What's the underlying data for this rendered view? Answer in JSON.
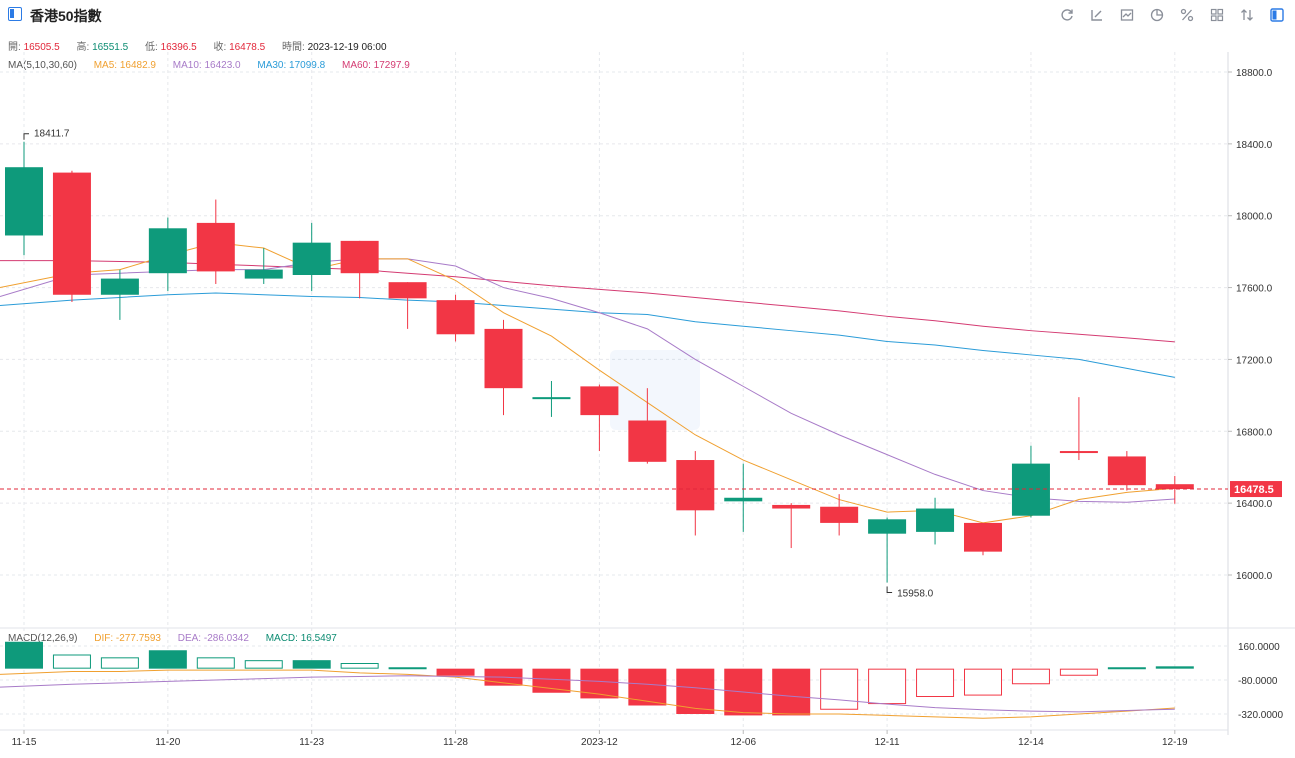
{
  "header": {
    "title": "香港50指數",
    "tools": [
      "refresh-icon",
      "draw-icon",
      "chart-type-icon",
      "pie-icon",
      "percent-icon",
      "grid-icon",
      "compare-icon",
      "sidebar-icon"
    ]
  },
  "ohlc": {
    "open_label": "開:",
    "open": "16505.5",
    "high_label": "高:",
    "high": "16551.5",
    "low_label": "低:",
    "low": "16396.5",
    "close_label": "收:",
    "close": "16478.5",
    "time_label": "時間:",
    "time": "2023-12-19 06:00"
  },
  "ma_legend": {
    "label": "MA(5,10,30,60)",
    "items": [
      {
        "text": "MA5: 16482.9",
        "color": "#f0a030"
      },
      {
        "text": "MA10: 16423.0",
        "color": "#a87bc8"
      },
      {
        "text": "MA30: 17099.8",
        "color": "#2b9cd8"
      },
      {
        "text": "MA60: 17297.9",
        "color": "#d43b72"
      }
    ]
  },
  "macd_legend": {
    "label": "MACD(12,26,9)",
    "items": [
      {
        "text": "DIF: -277.7593",
        "color": "#f0a030"
      },
      {
        "text": "DEA: -286.0342",
        "color": "#a87bc8"
      },
      {
        "text": "MACD: 16.5497",
        "color": "#0c8c72"
      }
    ]
  },
  "colors": {
    "up": "#0e9a7b",
    "down": "#f23645",
    "grid": "#e6e8ec"
  },
  "chart_data": [
    {
      "type": "candlestick",
      "price_axis": {
        "min": 15750,
        "max": 18950,
        "ticks": [
          16000,
          16400,
          16800,
          17200,
          17600,
          18000,
          18400,
          18800
        ],
        "tick_labels": [
          "16000.0",
          "16400.0",
          "16800.0",
          "17200.0",
          "17600.0",
          "18000.0",
          "18400.0",
          "18800.0"
        ]
      },
      "x_tick_labels": [
        {
          "index": 0,
          "label": "11-15"
        },
        {
          "index": 3,
          "label": "11-20"
        },
        {
          "index": 6,
          "label": "11-23"
        },
        {
          "index": 9,
          "label": "11-28"
        },
        {
          "index": 12,
          "label": "2023-12"
        },
        {
          "index": 15,
          "label": "12-06"
        },
        {
          "index": 18,
          "label": "12-11"
        },
        {
          "index": 21,
          "label": "12-14"
        },
        {
          "index": 24,
          "label": "12-19"
        }
      ],
      "candles": [
        {
          "o": 17890,
          "h": 18412,
          "l": 17780,
          "c": 18270
        },
        {
          "o": 18240,
          "h": 18250,
          "l": 17520,
          "c": 17560
        },
        {
          "o": 17560,
          "h": 17700,
          "l": 17420,
          "c": 17650
        },
        {
          "o": 17680,
          "h": 17990,
          "l": 17580,
          "c": 17930
        },
        {
          "o": 17960,
          "h": 18090,
          "l": 17620,
          "c": 17690
        },
        {
          "o": 17650,
          "h": 17820,
          "l": 17620,
          "c": 17700
        },
        {
          "o": 17670,
          "h": 17960,
          "l": 17580,
          "c": 17850
        },
        {
          "o": 17860,
          "h": 17860,
          "l": 17540,
          "c": 17680
        },
        {
          "o": 17630,
          "h": 17630,
          "l": 17370,
          "c": 17540
        },
        {
          "o": 17530,
          "h": 17560,
          "l": 17300,
          "c": 17340
        },
        {
          "o": 17370,
          "h": 17420,
          "l": 16890,
          "c": 17040
        },
        {
          "o": 16990,
          "h": 17080,
          "l": 16880,
          "c": 16990
        },
        {
          "o": 17050,
          "h": 17060,
          "l": 16690,
          "c": 16890
        },
        {
          "o": 16860,
          "h": 17040,
          "l": 16620,
          "c": 16630
        },
        {
          "o": 16640,
          "h": 16690,
          "l": 16220,
          "c": 16360
        },
        {
          "o": 16410,
          "h": 16620,
          "l": 16240,
          "c": 16430
        },
        {
          "o": 16390,
          "h": 16400,
          "l": 16150,
          "c": 16370
        },
        {
          "o": 16380,
          "h": 16450,
          "l": 16220,
          "c": 16290
        },
        {
          "o": 16230,
          "h": 16320,
          "l": 15958,
          "c": 16310
        },
        {
          "o": 16240,
          "h": 16430,
          "l": 16170,
          "c": 16370
        },
        {
          "o": 16290,
          "h": 16290,
          "l": 16110,
          "c": 16130
        },
        {
          "o": 16330,
          "h": 16720,
          "l": 16320,
          "c": 16620
        },
        {
          "o": 16690,
          "h": 16990,
          "l": 16640,
          "c": 16680
        },
        {
          "o": 16660,
          "h": 16690,
          "l": 16470,
          "c": 16500
        },
        {
          "o": 16505.5,
          "h": 16551.5,
          "l": 16396.5,
          "c": 16478.5
        }
      ],
      "ma": {
        "ma5": [
          17600,
          17680,
          17700,
          17780,
          17850,
          17820,
          17700,
          17760,
          17760,
          17640,
          17460,
          17330,
          17140,
          16960,
          16780,
          16640,
          16530,
          16420,
          16350,
          16360,
          16290,
          16330,
          16420,
          16460,
          16483
        ],
        "ma10": [
          17550,
          17670,
          17680,
          17690,
          17700,
          17700,
          17740,
          17760,
          17760,
          17720,
          17600,
          17540,
          17460,
          17370,
          17200,
          17050,
          16900,
          16780,
          16670,
          16560,
          16470,
          16430,
          16410,
          16405,
          16423
        ],
        "ma30": [
          17500,
          17530,
          17545,
          17560,
          17570,
          17560,
          17550,
          17545,
          17530,
          17520,
          17500,
          17480,
          17460,
          17450,
          17410,
          17385,
          17360,
          17335,
          17300,
          17280,
          17250,
          17225,
          17200,
          17150,
          17100
        ],
        "ma60": [
          17750,
          17750,
          17745,
          17740,
          17730,
          17720,
          17710,
          17700,
          17680,
          17660,
          17635,
          17610,
          17590,
          17570,
          17545,
          17520,
          17495,
          17470,
          17440,
          17415,
          17385,
          17360,
          17340,
          17320,
          17298
        ]
      },
      "last_price": "16478.5",
      "last_price_value": 16478.5,
      "max_label": "18411.7",
      "max_index": 0,
      "max_value": 18412,
      "min_label": "15958.0",
      "min_index": 18,
      "min_value": 15958
    },
    {
      "type": "macd",
      "y_axis": {
        "min": -370,
        "max": 190,
        "ticks": [
          160,
          -80,
          -320
        ],
        "tick_labels": [
          "160.0000",
          "-80.0000",
          "-320.0000"
        ]
      },
      "hist": [
        190,
        100,
        80,
        130,
        80,
        60,
        60,
        40,
        10,
        -50,
        -120,
        -170,
        -210,
        -260,
        -320,
        -330,
        -330,
        -290,
        -250,
        -200,
        -190,
        -110,
        -50,
        10,
        16.5497
      ],
      "dif": [
        -40,
        -20,
        -20,
        -10,
        -10,
        -10,
        -10,
        -30,
        -40,
        -60,
        -100,
        -140,
        -180,
        -230,
        -280,
        -310,
        -320,
        -320,
        -330,
        -340,
        -350,
        -340,
        -320,
        -300,
        -277.7593
      ],
      "dea": [
        -130,
        -110,
        -100,
        -90,
        -80,
        -70,
        -60,
        -55,
        -50,
        -55,
        -60,
        -75,
        -90,
        -110,
        -135,
        -165,
        -195,
        -220,
        -250,
        -275,
        -290,
        -300,
        -305,
        -295,
        -286.0342
      ]
    }
  ]
}
